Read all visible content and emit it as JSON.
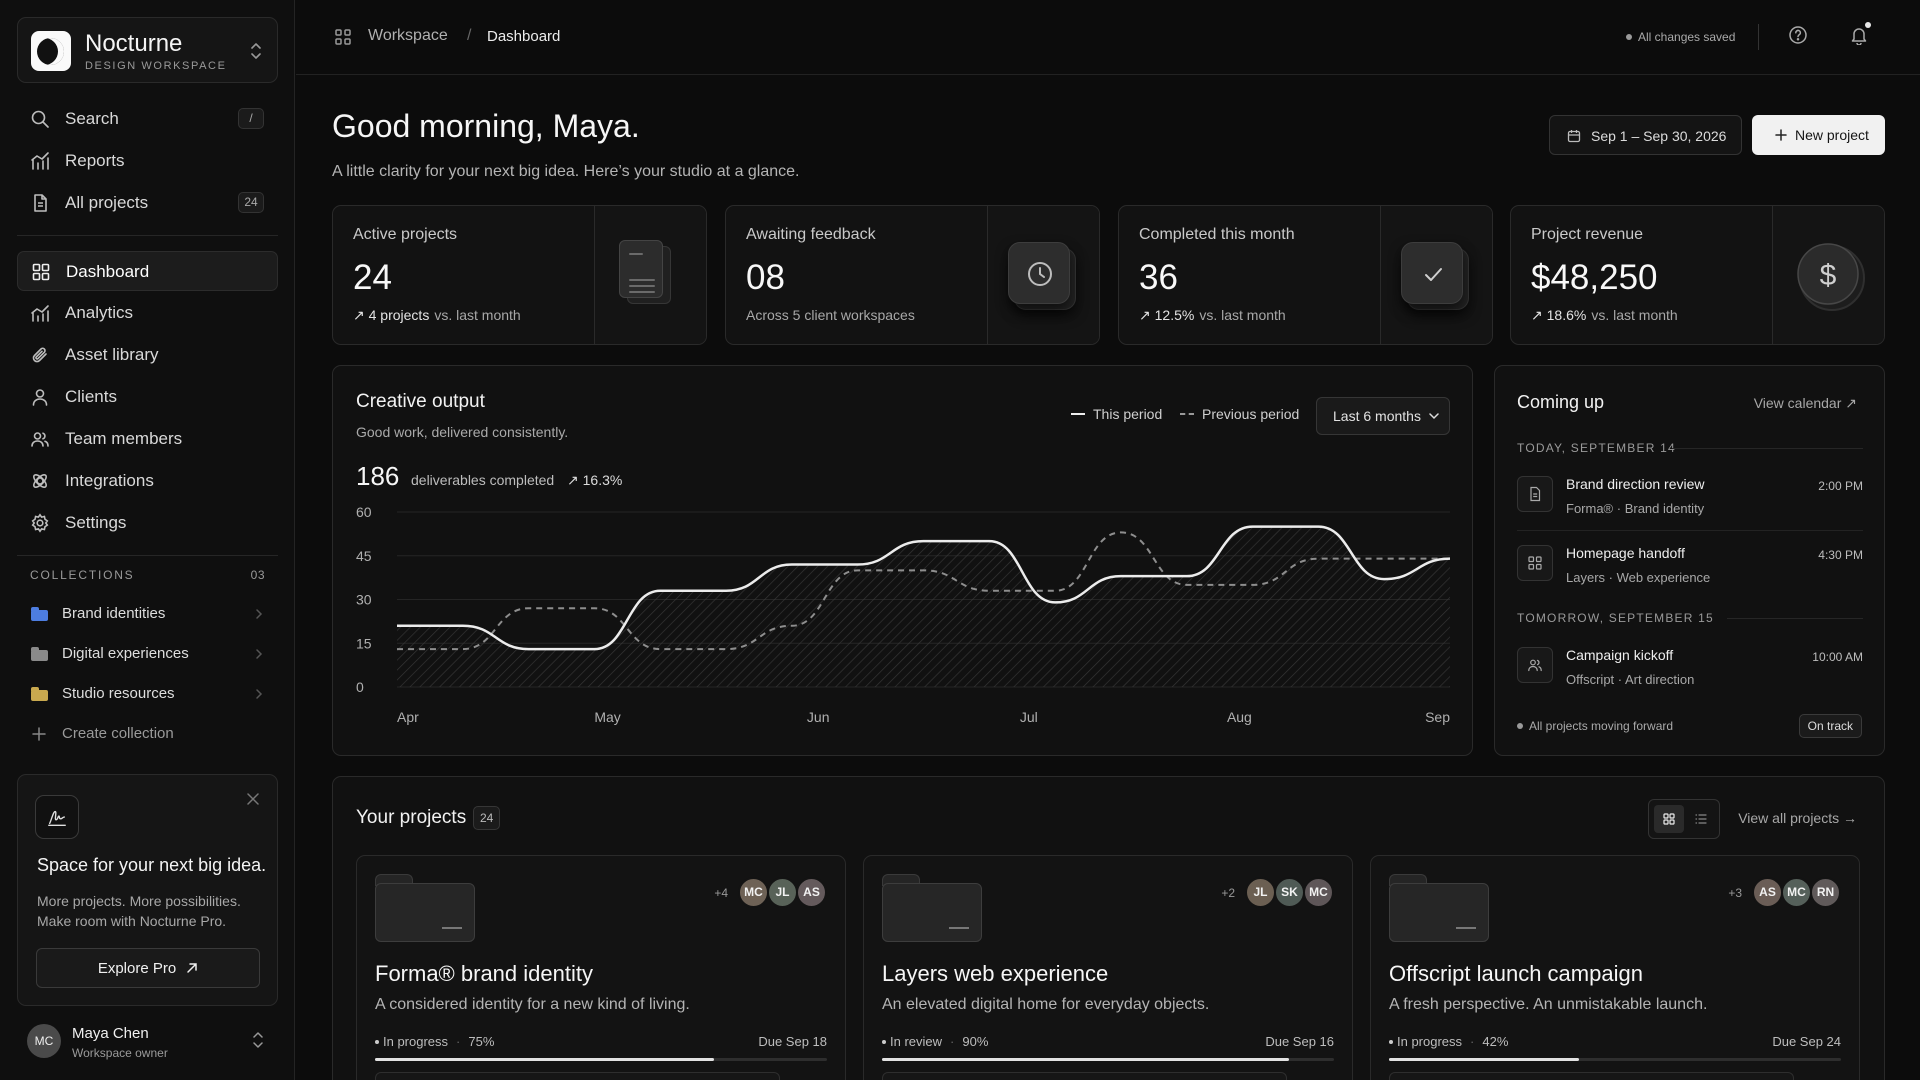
{
  "brand": {
    "name": "Nocturne",
    "subtitle": "DESIGN WORKSPACE"
  },
  "sidebar": {
    "top_items": [
      {
        "label": "Search",
        "shortcut": "/",
        "icon": "search-icon"
      },
      {
        "label": "Reports",
        "icon": "reports-icon"
      },
      {
        "label": "All projects",
        "badge": "24",
        "icon": "file-icon"
      }
    ],
    "nav": [
      {
        "label": "Dashboard",
        "icon": "grid-icon",
        "active": true
      },
      {
        "label": "Analytics",
        "icon": "analytics-icon"
      },
      {
        "label": "Asset library",
        "icon": "paperclip-icon"
      },
      {
        "label": "Clients",
        "icon": "user-icon"
      },
      {
        "label": "Team members",
        "icon": "users-icon"
      },
      {
        "label": "Integrations",
        "icon": "integrations-icon"
      },
      {
        "label": "Settings",
        "icon": "gear-icon"
      }
    ],
    "collections": {
      "heading": "COLLECTIONS",
      "count": "03",
      "items": [
        {
          "label": "Brand identities",
          "color": "#4d7de0"
        },
        {
          "label": "Digital experiences",
          "color": "#8a8a8a"
        },
        {
          "label": "Studio resources",
          "color": "#c9a94f"
        }
      ],
      "create_label": "Create collection"
    },
    "promo": {
      "title": "Space for your next big idea.",
      "text": "More projects. More possibilities. Make room with Nocturne Pro.",
      "button": "Explore Pro"
    },
    "user": {
      "initials": "MC",
      "name": "Maya Chen",
      "role": "Workspace owner"
    }
  },
  "topbar": {
    "breadcrumb_root": "Workspace",
    "breadcrumb_sep": "/",
    "breadcrumb_current": "Dashboard",
    "save_status": "All changes saved"
  },
  "header": {
    "greeting": "Good morning, Maya.",
    "subtitle": "A little clarity for your next big idea. Here’s your studio at a glance.",
    "date_range": "Sep 1 – Sep 30, 2026",
    "new_project": "New project"
  },
  "stats": [
    {
      "title": "Active projects",
      "value": "24",
      "delta": "↗ 4 projects",
      "note": "vs. last month",
      "icon": "document-stack-icon"
    },
    {
      "title": "Awaiting feedback",
      "value": "08",
      "delta": "",
      "note": "Across 5 client workspaces",
      "icon": "clock-icon"
    },
    {
      "title": "Completed this month",
      "value": "36",
      "delta": "↗ 12.5%",
      "note": "vs. last month",
      "icon": "check-icon"
    },
    {
      "title": "Project revenue",
      "value": "$48,250",
      "delta": "↗ 18.6%",
      "note": "vs. last month",
      "icon": "dollar-icon"
    }
  ],
  "creative_output": {
    "title": "Creative output",
    "subtitle": "Good work, delivered consistently.",
    "total": "186",
    "total_label": "deliverables completed",
    "delta": "↗ 16.3%",
    "legend_current": "This period",
    "legend_previous": "Previous period",
    "range": "Last 6 months"
  },
  "chart_data": {
    "type": "line",
    "y_ticks": [
      "60",
      "45",
      "30",
      "15",
      "0"
    ],
    "ylim": [
      0,
      60
    ],
    "x_labels": [
      "Apr",
      "May",
      "Jun",
      "Jul",
      "Aug",
      "Sep"
    ],
    "x": [
      "Apr",
      "Apr",
      "Apr",
      "Apr",
      "May",
      "May",
      "May",
      "Jun",
      "Jun",
      "Jun",
      "Jul",
      "Jul",
      "Aug",
      "Aug",
      "Aug",
      "Sep",
      "Sep"
    ],
    "series": [
      {
        "name": "This period",
        "values": [
          21,
          21,
          13,
          13,
          33,
          33,
          42,
          42,
          50,
          50,
          29,
          38,
          38,
          55,
          55,
          37,
          44
        ]
      },
      {
        "name": "Previous period",
        "values": [
          13,
          13,
          27,
          27,
          13,
          13,
          21,
          40,
          40,
          33,
          33,
          53,
          35,
          35,
          44,
          44,
          44
        ]
      }
    ],
    "grid": true,
    "legend": "top-right"
  },
  "coming_up": {
    "title": "Coming up",
    "link": "View calendar ↗",
    "days": [
      {
        "label": "TODAY, SEPTEMBER 14",
        "events": [
          {
            "title": "Brand direction review",
            "meta": "Forma® · Brand identity",
            "time": "2:00 PM",
            "icon": "document-icon"
          },
          {
            "title": "Homepage handoff",
            "meta": "Layers · Web experience",
            "time": "4:30 PM",
            "icon": "grid-icon"
          }
        ]
      },
      {
        "label": "TOMORROW, SEPTEMBER 15",
        "events": [
          {
            "title": "Campaign kickoff",
            "meta": "Offscript · Art direction",
            "time": "10:00 AM",
            "icon": "users-icon"
          }
        ]
      }
    ],
    "status": "All projects moving forward",
    "badge": "On track"
  },
  "projects": {
    "title": "Your projects",
    "count": "24",
    "link": "View all projects →",
    "items": [
      {
        "name": "Forma® brand identity",
        "desc": "A considered identity for a new kind of living.",
        "status": "In progress",
        "progress": "75%",
        "progress_value": 0.75,
        "due": "Due Sep 18",
        "more": "+4",
        "avatars": [
          {
            "initials": "MC",
            "color": "#6e6256"
          },
          {
            "initials": "JL",
            "color": "#586258"
          },
          {
            "initials": "AS",
            "color": "#645a5c"
          }
        ]
      },
      {
        "name": "Layers web experience",
        "desc": "An elevated digital home for everyday objects.",
        "status": "In review",
        "progress": "90%",
        "progress_value": 0.9,
        "due": "Due Sep 16",
        "more": "+2",
        "avatars": [
          {
            "initials": "JL",
            "color": "#6b5f52"
          },
          {
            "initials": "SK",
            "color": "#4f5a55"
          },
          {
            "initials": "MC",
            "color": "#5e5658"
          }
        ]
      },
      {
        "name": "Offscript launch campaign",
        "desc": "A fresh perspective. An unmistakable launch.",
        "status": "In progress",
        "progress": "42%",
        "progress_value": 0.42,
        "due": "Due Sep 24",
        "more": "+3",
        "avatars": [
          {
            "initials": "AS",
            "color": "#6a5d56"
          },
          {
            "initials": "MC",
            "color": "#55605a"
          },
          {
            "initials": "RN",
            "color": "#605a5a"
          }
        ]
      }
    ]
  }
}
